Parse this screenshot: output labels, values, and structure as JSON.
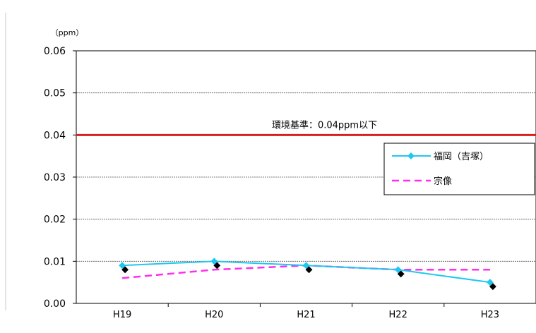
{
  "chart_data": {
    "type": "line",
    "unit_label": "（ppm）",
    "categories": [
      "H19",
      "H20",
      "H21",
      "H22",
      "H23"
    ],
    "y_ticks": [
      "0.06",
      "0.05",
      "0.04",
      "0.03",
      "0.02",
      "0.01",
      "0.00"
    ],
    "ylim": [
      0,
      0.06
    ],
    "grid": true,
    "reference_line": {
      "value": 0.04,
      "label": "環境基準：0.04ppm以下",
      "color": "#d62020"
    },
    "legend_placement": "right",
    "series": [
      {
        "name": "福岡（吉塚）",
        "color": "#1ec8f0",
        "style": "solid-marker",
        "values": [
          0.009,
          0.01,
          0.009,
          0.008,
          0.005
        ]
      },
      {
        "name": "宗像",
        "color": "#ff2cf0",
        "style": "dashed",
        "values": [
          0.006,
          0.008,
          0.009,
          0.008,
          0.008
        ]
      }
    ]
  }
}
